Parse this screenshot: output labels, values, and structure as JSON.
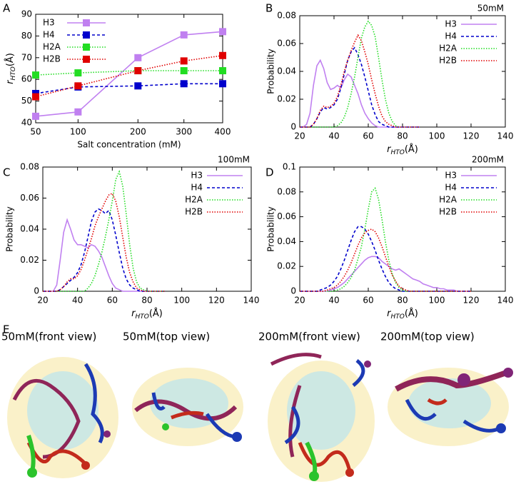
{
  "chart_data": [
    {
      "type": "line",
      "label": "A",
      "xscale": "sqrt",
      "markers": "square",
      "legend": "upper left",
      "xlabel": "Salt concentration (mM)",
      "ylabel": {
        "main": "r",
        "sub": "HTO",
        "unit": "(Å)"
      },
      "x": [
        50,
        100,
        200,
        300,
        400
      ],
      "xlim": [
        50,
        400
      ],
      "xticks": [
        50,
        100,
        200,
        300,
        400
      ],
      "ylim": [
        40,
        90
      ],
      "yticks": [
        40,
        50,
        60,
        70,
        80,
        90
      ],
      "series": [
        {
          "name": "H3",
          "color": "#c080f0",
          "dash": "solid",
          "values": [
            43,
            45,
            70,
            80.5,
            82
          ]
        },
        {
          "name": "H4",
          "color": "#0000cc",
          "dash": "dashed",
          "values": [
            53.5,
            56.5,
            57,
            58,
            58
          ]
        },
        {
          "name": "H2A",
          "color": "#22dd22",
          "dash": "dotted",
          "values": [
            62,
            63,
            64,
            64,
            64
          ]
        },
        {
          "name": "H2B",
          "color": "#e00000",
          "dash": "dotted",
          "values": [
            52,
            57,
            64,
            68.5,
            71
          ]
        }
      ]
    },
    {
      "type": "line",
      "label": "B",
      "annotation": "50mM",
      "legend": "upper right",
      "xlabel": {
        "main": "r",
        "sub": "HTO",
        "unit": "(Å)"
      },
      "ylabel": "Probability",
      "x": [
        20,
        22,
        24,
        26,
        28,
        30,
        32,
        34,
        36,
        38,
        40,
        42,
        44,
        46,
        48,
        50,
        52,
        54,
        56,
        58,
        60,
        62,
        64,
        66,
        68,
        70,
        72,
        74,
        76,
        78,
        80,
        82,
        84,
        86,
        88,
        90
      ],
      "xlim": [
        20,
        140
      ],
      "xticks": [
        20,
        40,
        60,
        80,
        100,
        120,
        140
      ],
      "ylim": [
        0,
        0.08
      ],
      "yticks": [
        0,
        0.02,
        0.04,
        0.06,
        0.08
      ],
      "series": [
        {
          "name": "H3",
          "color": "#c080f0",
          "dash": "solid",
          "values": [
            0,
            0,
            0.002,
            0.01,
            0.03,
            0.044,
            0.048,
            0.042,
            0.032,
            0.027,
            0.028,
            0.03,
            0.028,
            0.034,
            0.038,
            0.036,
            0.03,
            0.024,
            0.016,
            0.01,
            0.006,
            0.003,
            0.001,
            0,
            0,
            0,
            0,
            0,
            0,
            0,
            0,
            0,
            0,
            0,
            0,
            0
          ]
        },
        {
          "name": "H4",
          "color": "#0000cc",
          "dash": "dashed",
          "values": [
            0,
            0,
            0,
            0,
            0.002,
            0.006,
            0.011,
            0.014,
            0.013,
            0.014,
            0.016,
            0.02,
            0.028,
            0.038,
            0.048,
            0.054,
            0.057,
            0.052,
            0.045,
            0.036,
            0.026,
            0.016,
            0.009,
            0.004,
            0.002,
            0.001,
            0,
            0,
            0,
            0,
            0,
            0,
            0,
            0,
            0,
            0
          ]
        },
        {
          "name": "H2A",
          "color": "#22dd22",
          "dash": "dotted",
          "values": [
            0,
            0,
            0,
            0,
            0,
            0,
            0,
            0,
            0,
            0,
            0,
            0.001,
            0.003,
            0.007,
            0.014,
            0.024,
            0.036,
            0.05,
            0.064,
            0.072,
            0.076,
            0.073,
            0.065,
            0.05,
            0.034,
            0.02,
            0.01,
            0.004,
            0.001,
            0,
            0,
            0,
            0,
            0,
            0,
            0
          ]
        },
        {
          "name": "H2B",
          "color": "#e00000",
          "dash": "dotted",
          "values": [
            0,
            0,
            0,
            0,
            0.002,
            0.006,
            0.012,
            0.015,
            0.014,
            0.015,
            0.017,
            0.022,
            0.03,
            0.04,
            0.048,
            0.055,
            0.061,
            0.066,
            0.062,
            0.054,
            0.045,
            0.034,
            0.024,
            0.015,
            0.008,
            0.004,
            0.002,
            0.001,
            0,
            0,
            0,
            0,
            0,
            0,
            0,
            0
          ]
        }
      ]
    },
    {
      "type": "line",
      "label": "C",
      "annotation": "100mM",
      "legend": "upper right",
      "xlabel": {
        "main": "r",
        "sub": "HTO",
        "unit": "(Å)"
      },
      "ylabel": "Probability",
      "x": [
        20,
        22,
        24,
        26,
        28,
        30,
        32,
        34,
        36,
        38,
        40,
        42,
        44,
        46,
        48,
        50,
        52,
        54,
        56,
        58,
        60,
        62,
        64,
        66,
        68,
        70,
        72,
        74,
        76,
        78,
        80,
        82,
        84,
        86,
        88,
        90
      ],
      "xlim": [
        20,
        140
      ],
      "xticks": [
        20,
        40,
        60,
        80,
        100,
        120,
        140
      ],
      "ylim": [
        0,
        0.08
      ],
      "yticks": [
        0,
        0.02,
        0.04,
        0.06,
        0.08
      ],
      "series": [
        {
          "name": "H3",
          "color": "#c080f0",
          "dash": "solid",
          "values": [
            0,
            0,
            0,
            0,
            0.004,
            0.02,
            0.038,
            0.046,
            0.04,
            0.033,
            0.03,
            0.03,
            0.029,
            0.028,
            0.03,
            0.029,
            0.026,
            0.022,
            0.016,
            0.01,
            0.005,
            0.002,
            0.001,
            0,
            0,
            0,
            0,
            0,
            0,
            0,
            0,
            0,
            0,
            0,
            0,
            0
          ]
        },
        {
          "name": "H4",
          "color": "#0000cc",
          "dash": "dashed",
          "values": [
            0,
            0,
            0,
            0,
            0,
            0.001,
            0.003,
            0.005,
            0.007,
            0.009,
            0.012,
            0.017,
            0.025,
            0.035,
            0.045,
            0.051,
            0.053,
            0.052,
            0.05,
            0.052,
            0.046,
            0.036,
            0.025,
            0.015,
            0.008,
            0.004,
            0.002,
            0.001,
            0,
            0,
            0,
            0,
            0,
            0,
            0,
            0
          ]
        },
        {
          "name": "H2A",
          "color": "#22dd22",
          "dash": "dotted",
          "values": [
            0,
            0,
            0,
            0,
            0,
            0,
            0,
            0,
            0,
            0,
            0,
            0,
            0,
            0.002,
            0.005,
            0.01,
            0.017,
            0.025,
            0.035,
            0.046,
            0.058,
            0.072,
            0.077,
            0.068,
            0.05,
            0.03,
            0.015,
            0.006,
            0.002,
            0.001,
            0,
            0,
            0,
            0,
            0,
            0
          ]
        },
        {
          "name": "H2B",
          "color": "#e00000",
          "dash": "dotted",
          "values": [
            0,
            0,
            0,
            0,
            0,
            0.001,
            0.003,
            0.006,
            0.008,
            0.008,
            0.01,
            0.014,
            0.02,
            0.027,
            0.034,
            0.042,
            0.048,
            0.053,
            0.058,
            0.062,
            0.063,
            0.058,
            0.048,
            0.035,
            0.022,
            0.012,
            0.006,
            0.002,
            0.001,
            0,
            0,
            0,
            0,
            0,
            0,
            0
          ]
        }
      ]
    },
    {
      "type": "line",
      "label": "D",
      "annotation": "200mM",
      "legend": "upper right",
      "xlabel": {
        "main": "r",
        "sub": "HTO",
        "unit": "(Å)"
      },
      "ylabel": "Probability",
      "x": [
        20,
        22,
        24,
        26,
        28,
        30,
        32,
        34,
        36,
        38,
        40,
        42,
        44,
        46,
        48,
        50,
        52,
        54,
        56,
        58,
        60,
        62,
        64,
        66,
        68,
        70,
        72,
        74,
        76,
        78,
        80,
        82,
        84,
        86,
        88,
        90,
        92,
        94,
        96,
        98,
        100,
        102,
        104,
        106,
        108,
        110,
        112,
        114,
        116,
        118,
        120
      ],
      "xlim": [
        20,
        140
      ],
      "xticks": [
        20,
        40,
        60,
        80,
        100,
        120,
        140
      ],
      "ylim": [
        0,
        0.1
      ],
      "yticks": [
        0,
        0.02,
        0.04,
        0.06,
        0.08,
        0.1
      ],
      "series": [
        {
          "name": "H3",
          "color": "#c080f0",
          "dash": "solid",
          "values": [
            0,
            0,
            0,
            0,
            0,
            0,
            0,
            0,
            0,
            0.001,
            0.002,
            0.003,
            0.005,
            0.007,
            0.01,
            0.013,
            0.016,
            0.019,
            0.022,
            0.025,
            0.027,
            0.028,
            0.028,
            0.027,
            0.024,
            0.022,
            0.02,
            0.018,
            0.017,
            0.018,
            0.016,
            0.014,
            0.012,
            0.01,
            0.009,
            0.008,
            0.006,
            0.005,
            0.004,
            0.003,
            0.003,
            0.002,
            0.002,
            0.001,
            0.001,
            0.001,
            0,
            0,
            0,
            0,
            0
          ]
        },
        {
          "name": "H4",
          "color": "#0000cc",
          "dash": "dashed",
          "values": [
            0,
            0,
            0,
            0,
            0,
            0,
            0.001,
            0.002,
            0.003,
            0.005,
            0.008,
            0.012,
            0.018,
            0.025,
            0.033,
            0.041,
            0.048,
            0.052,
            0.052,
            0.05,
            0.046,
            0.04,
            0.033,
            0.025,
            0.018,
            0.012,
            0.007,
            0.004,
            0.002,
            0.001,
            0,
            0,
            0,
            0,
            0,
            0,
            0,
            0,
            0,
            0,
            0,
            0,
            0,
            0,
            0,
            0,
            0,
            0,
            0,
            0,
            0
          ]
        },
        {
          "name": "H2A",
          "color": "#22dd22",
          "dash": "dotted",
          "values": [
            0,
            0,
            0,
            0,
            0,
            0,
            0,
            0,
            0,
            0,
            0,
            0.001,
            0.002,
            0.004,
            0.007,
            0.011,
            0.017,
            0.026,
            0.036,
            0.05,
            0.066,
            0.08,
            0.083,
            0.074,
            0.058,
            0.04,
            0.025,
            0.014,
            0.007,
            0.003,
            0.001,
            0,
            0,
            0,
            0,
            0,
            0,
            0,
            0,
            0,
            0,
            0,
            0,
            0,
            0,
            0,
            0,
            0,
            0,
            0,
            0
          ]
        },
        {
          "name": "H2B",
          "color": "#e00000",
          "dash": "dotted",
          "values": [
            0,
            0,
            0,
            0,
            0,
            0,
            0,
            0,
            0.001,
            0.002,
            0.003,
            0.005,
            0.008,
            0.012,
            0.017,
            0.023,
            0.03,
            0.037,
            0.043,
            0.047,
            0.049,
            0.05,
            0.048,
            0.043,
            0.036,
            0.028,
            0.02,
            0.013,
            0.008,
            0.004,
            0.002,
            0.001,
            0,
            0,
            0,
            0,
            0,
            0,
            0,
            0,
            0,
            0,
            0,
            0,
            0,
            0,
            0,
            0,
            0,
            0,
            0
          ]
        }
      ]
    }
  ],
  "panel_e": {
    "label": "E",
    "views": [
      "50mM(front view)",
      "50mM(top view)",
      "200mM(front view)",
      "200mM(top view)"
    ]
  }
}
